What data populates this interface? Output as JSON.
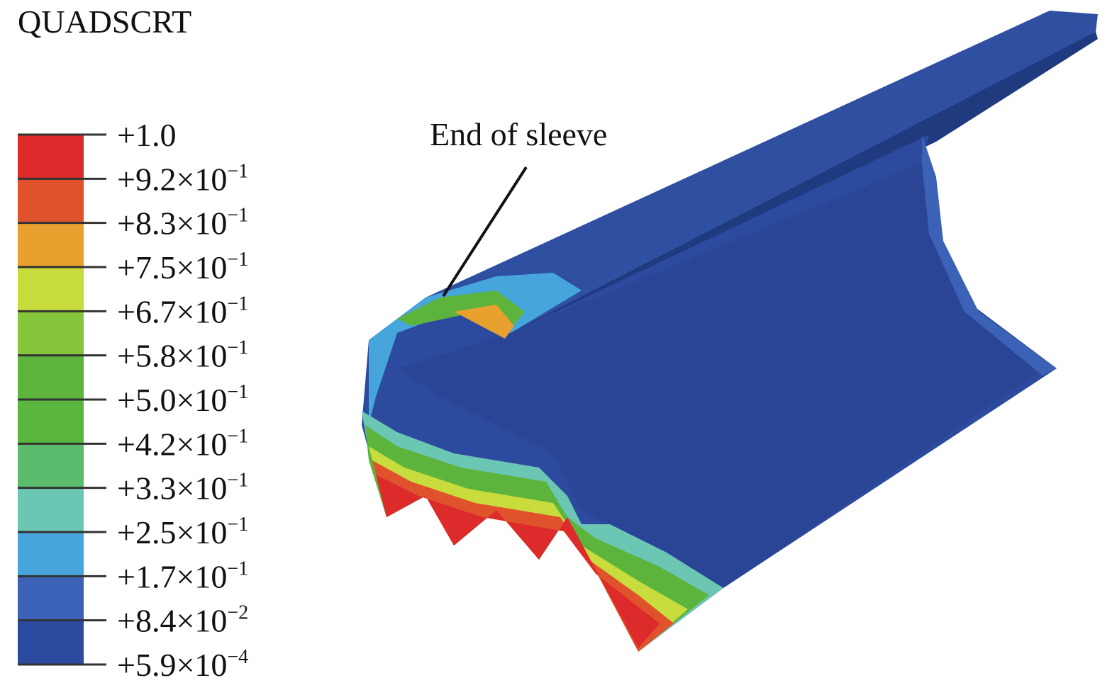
{
  "title": "QUADSCRT",
  "annotation": "End of sleeve",
  "legend": {
    "colors": [
      "#dd2a2a",
      "#e0522c",
      "#e8a02e",
      "#c8dc3e",
      "#86c63c",
      "#5cb43c",
      "#5ab63e",
      "#5cbc6e",
      "#6cc6b4",
      "#46a6dc",
      "#3c62b8",
      "#2c4ba0"
    ],
    "labels": [
      {
        "base": "+1.0"
      },
      {
        "base": "+9.2×10",
        "exp": "−1"
      },
      {
        "base": "+8.3×10",
        "exp": "−1"
      },
      {
        "base": "+7.5×10",
        "exp": "−1"
      },
      {
        "base": "+6.7×10",
        "exp": "−1"
      },
      {
        "base": "+5.8×10",
        "exp": "−1"
      },
      {
        "base": "+5.0×10",
        "exp": "−1"
      },
      {
        "base": "+4.2×10",
        "exp": "−1"
      },
      {
        "base": "+3.3×10",
        "exp": "−1"
      },
      {
        "base": "+2.5×10",
        "exp": "−1"
      },
      {
        "base": "+1.7×10",
        "exp": "−1"
      },
      {
        "base": "+8.4×10",
        "exp": "−2"
      },
      {
        "base": "+5.9×10",
        "exp": "−4"
      }
    ]
  }
}
